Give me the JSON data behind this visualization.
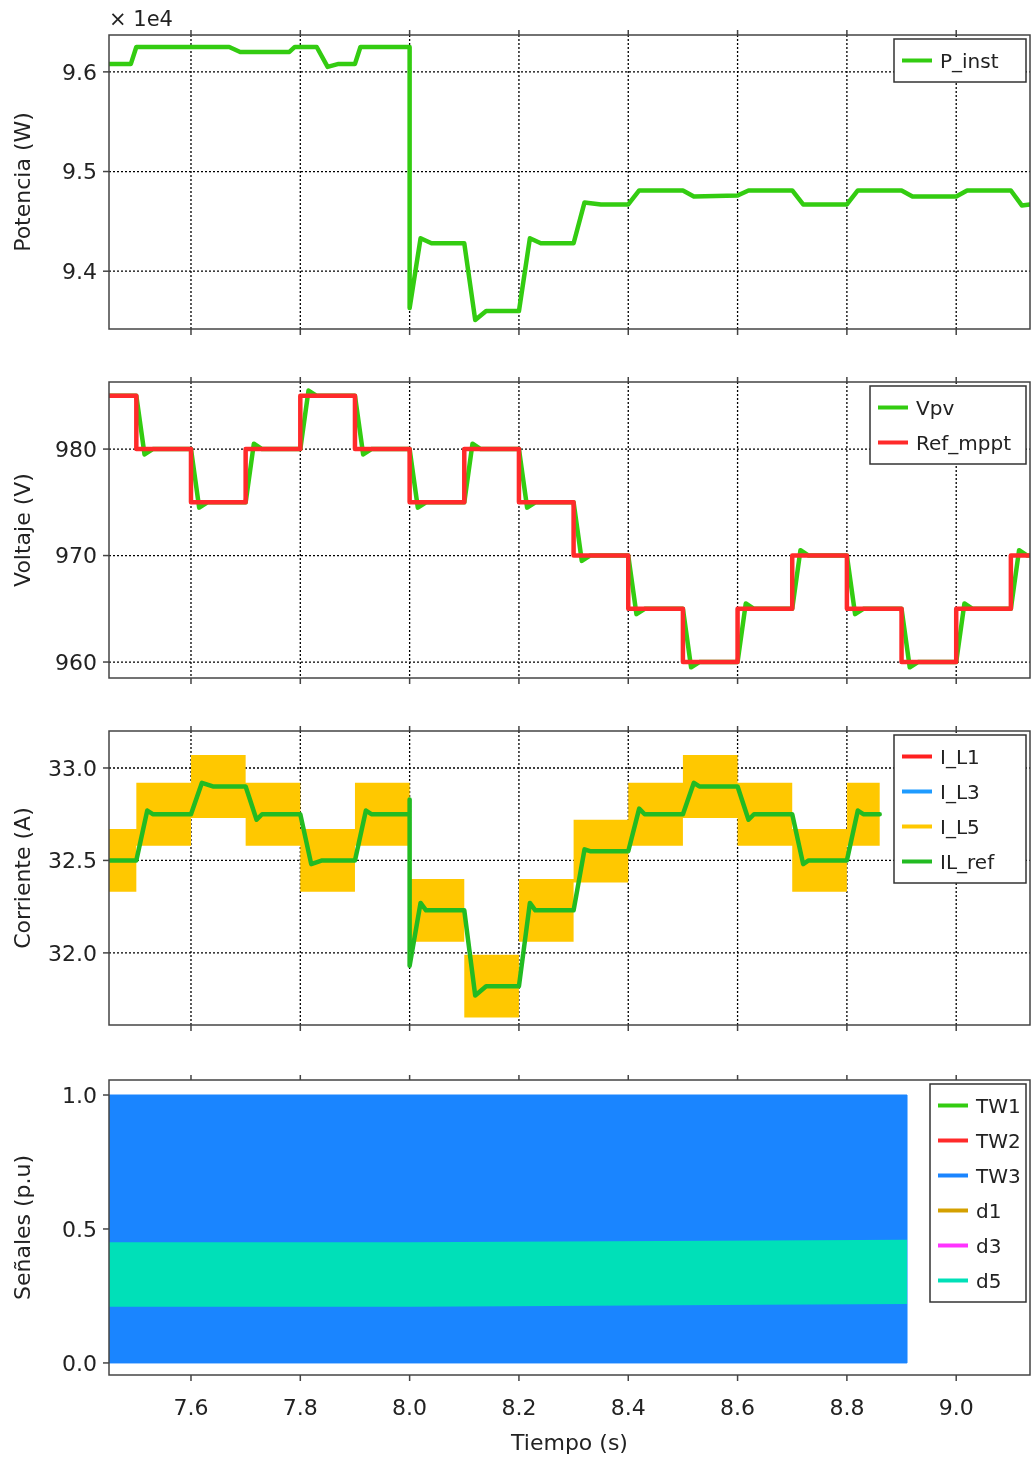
{
  "chart_data": [
    {
      "type": "line",
      "ylabel": "Potencia (W)",
      "annotations": [
        "× 1e4"
      ],
      "xlim": [
        7.45,
        9.135
      ],
      "ylim": [
        9.342,
        9.637
      ],
      "yticks": [
        9.4,
        9.5,
        9.6
      ],
      "xticks": [
        7.6,
        7.8,
        8,
        8.2,
        8.4,
        8.6,
        8.8,
        9
      ],
      "tick_labels": "y",
      "grid": true,
      "legend": "top right",
      "series": [
        {
          "name": "P_inst",
          "color": "#33cc11",
          "x": [
            7.45,
            7.49,
            7.5,
            7.67,
            7.69,
            7.78,
            7.79,
            7.83,
            7.85,
            7.87,
            7.9,
            7.91,
            8.0,
            8.0,
            8.02,
            8.04,
            8.1,
            8.12,
            8.14,
            8.2,
            8.22,
            8.24,
            8.3,
            8.32,
            8.35,
            8.4,
            8.42,
            8.5,
            8.52,
            8.6,
            8.62,
            8.7,
            8.72,
            8.8,
            8.82,
            8.9,
            8.92,
            9.0,
            9.02,
            9.1,
            9.12,
            9.135
          ],
          "values": [
            9.608,
            9.608,
            9.625,
            9.625,
            9.62,
            9.62,
            9.625,
            9.625,
            9.605,
            9.608,
            9.608,
            9.625,
            9.625,
            9.363,
            9.433,
            9.428,
            9.428,
            9.351,
            9.36,
            9.36,
            9.433,
            9.428,
            9.428,
            9.469,
            9.467,
            9.467,
            9.481,
            9.481,
            9.475,
            9.476,
            9.481,
            9.481,
            9.467,
            9.467,
            9.481,
            9.481,
            9.475,
            9.475,
            9.481,
            9.481,
            9.466,
            9.467
          ]
        }
      ]
    },
    {
      "type": "line",
      "ylabel": "Voltaje (V)",
      "xlim": [
        7.45,
        9.135
      ],
      "ylim": [
        958.5,
        986.3
      ],
      "yticks": [
        960,
        970,
        980
      ],
      "xticks": [
        7.6,
        7.8,
        8,
        8.2,
        8.4,
        8.6,
        8.8,
        9
      ],
      "tick_labels": "y",
      "grid": true,
      "legend": "top right",
      "series": [
        {
          "name": "Vpv",
          "color": "#33cc11",
          "x": [
            7.45,
            7.5,
            7.515,
            7.53,
            7.6,
            7.615,
            7.63,
            7.7,
            7.715,
            7.73,
            7.8,
            7.815,
            7.83,
            7.9,
            7.915,
            7.93,
            8.0,
            8.015,
            8.03,
            8.1,
            8.115,
            8.13,
            8.2,
            8.215,
            8.23,
            8.3,
            8.315,
            8.33,
            8.4,
            8.415,
            8.43,
            8.5,
            8.515,
            8.53,
            8.6,
            8.615,
            8.63,
            8.7,
            8.715,
            8.73,
            8.8,
            8.815,
            8.83,
            8.9,
            8.915,
            8.93,
            9.0,
            9.015,
            9.03,
            9.1,
            9.115,
            9.13,
            9.135
          ],
          "values": [
            985,
            985,
            979.5,
            980,
            980,
            974.5,
            975,
            975,
            980.5,
            980,
            980,
            985.5,
            985,
            985,
            979.5,
            980,
            980,
            974.5,
            975,
            975,
            980.5,
            980,
            980,
            974.5,
            975,
            975,
            969.5,
            970,
            970,
            964.5,
            965,
            965,
            959.5,
            960,
            960,
            965.5,
            965,
            965,
            970.5,
            970,
            970,
            964.5,
            965,
            965,
            959.5,
            960,
            960,
            965.5,
            965,
            965,
            970.5,
            970,
            970
          ]
        },
        {
          "name": "Ref_mppt",
          "color": "#ff2a2a",
          "type": "step",
          "x": [
            7.45,
            7.5,
            7.6,
            7.7,
            7.8,
            7.9,
            8.0,
            8.1,
            8.2,
            8.3,
            8.4,
            8.5,
            8.6,
            8.7,
            8.8,
            8.9,
            9.0,
            9.1,
            9.135
          ],
          "values": [
            985,
            980,
            975,
            980,
            985,
            980,
            975,
            980,
            975,
            970,
            965,
            960,
            965,
            970,
            965,
            960,
            965,
            970,
            970
          ]
        }
      ]
    },
    {
      "type": "line",
      "ylabel": "Corriente (A)",
      "xlim": [
        7.45,
        9.135
      ],
      "ylim": [
        31.61,
        33.2
      ],
      "yticks": [
        {
          "value": 32,
          "label": "32.0"
        },
        32.5,
        {
          "value": 33,
          "label": "33.0"
        }
      ],
      "xticks": [
        7.6,
        7.8,
        8,
        8.2,
        8.4,
        8.6,
        8.8,
        9
      ],
      "tick_labels": "y",
      "grid": true,
      "legend": "top right",
      "series": [
        {
          "name": "I_L1",
          "color": "#ff2020"
        },
        {
          "name": "I_L3",
          "color": "#1e9bff"
        },
        {
          "name": "I_L5",
          "color": "#ffc800",
          "x": [
            7.45,
            7.5,
            7.5,
            7.6,
            7.6,
            7.7,
            7.7,
            7.8,
            7.8,
            7.9,
            7.9,
            8.0,
            8.0,
            8.1,
            8.1,
            8.2,
            8.2,
            8.3,
            8.3,
            8.4,
            8.4,
            8.5,
            8.5,
            8.6,
            8.6,
            8.7,
            8.7,
            8.8,
            8.8,
            8.86
          ],
          "values": [
            null,
            null,
            null,
            null,
            null,
            null,
            null,
            null,
            null,
            null,
            null,
            null,
            null,
            null,
            null,
            null,
            null,
            null,
            null,
            null,
            null,
            null,
            null,
            null,
            null,
            null,
            null,
            null,
            null,
            null
          ],
          "upper": [
            32.67,
            32.67,
            32.92,
            32.92,
            33.07,
            33.07,
            32.92,
            32.92,
            32.67,
            32.67,
            32.92,
            32.92,
            32.4,
            32.4,
            31.99,
            31.99,
            32.4,
            32.4,
            32.72,
            32.72,
            32.92,
            32.92,
            33.07,
            33.07,
            32.92,
            32.92,
            32.67,
            32.67,
            32.92,
            32.92
          ],
          "lower": [
            32.33,
            32.33,
            32.58,
            32.58,
            32.73,
            32.73,
            32.58,
            32.58,
            32.33,
            32.33,
            32.58,
            32.58,
            32.06,
            32.06,
            31.65,
            31.65,
            32.06,
            32.06,
            32.38,
            32.38,
            32.58,
            32.58,
            32.73,
            32.73,
            32.58,
            32.58,
            32.33,
            32.33,
            32.58,
            32.58
          ]
        },
        {
          "name": "IL_ref",
          "color": "#22bb22",
          "x": [
            7.45,
            7.5,
            7.52,
            7.53,
            7.6,
            7.62,
            7.64,
            7.7,
            7.72,
            7.73,
            7.8,
            7.82,
            7.84,
            7.9,
            7.92,
            7.93,
            8.0,
            8.0,
            8.0,
            8.02,
            8.03,
            8.1,
            8.12,
            8.14,
            8.2,
            8.22,
            8.23,
            8.3,
            8.32,
            8.33,
            8.4,
            8.42,
            8.43,
            8.5,
            8.52,
            8.53,
            8.6,
            8.62,
            8.63,
            8.7,
            8.72,
            8.73,
            8.8,
            8.82,
            8.83,
            8.86
          ],
          "values": [
            32.5,
            32.5,
            32.77,
            32.75,
            32.75,
            32.92,
            32.9,
            32.9,
            32.72,
            32.75,
            32.75,
            32.48,
            32.5,
            32.5,
            32.77,
            32.75,
            32.75,
            32.83,
            31.93,
            32.27,
            32.23,
            32.23,
            31.77,
            31.82,
            31.82,
            32.27,
            32.23,
            32.23,
            32.56,
            32.55,
            32.55,
            32.78,
            32.75,
            32.75,
            32.92,
            32.9,
            32.9,
            32.72,
            32.75,
            32.75,
            32.48,
            32.5,
            32.5,
            32.77,
            32.75,
            32.75
          ]
        }
      ]
    },
    {
      "type": "line",
      "ylabel": "Señales (p.u)",
      "xlabel": "Tiempo (s)",
      "xlim": [
        7.45,
        9.135
      ],
      "ylim": [
        -0.045,
        1.056
      ],
      "yticks": [
        {
          "value": 0,
          "label": "0.0"
        },
        0.5,
        {
          "value": 1,
          "label": "1.0"
        }
      ],
      "xticks": [
        7.6,
        7.8,
        {
          "value": 8,
          "label": "8.0"
        },
        8.2,
        8.4,
        8.6,
        8.8,
        {
          "value": 9,
          "label": "9.0"
        }
      ],
      "legend": "top right",
      "series": [
        {
          "name": "TW1",
          "color": "#33cc11"
        },
        {
          "name": "TW2",
          "color": "#ff2a2a"
        },
        {
          "name": "TW3",
          "color": "#1a85ff",
          "type": "area",
          "x": [
            7.45,
            8.91
          ],
          "values": [
            1,
            1
          ]
        },
        {
          "name": "d1",
          "color": "#d4a000"
        },
        {
          "name": "d3",
          "color": "#ff33ff"
        },
        {
          "name": "d5",
          "color": "#00e0b8",
          "x": [
            7.45,
            8.0,
            8.91
          ],
          "values": [
            null,
            null,
            null
          ],
          "lower": [
            0.21,
            0.21,
            0.22
          ],
          "upper": [
            0.45,
            0.45,
            0.46
          ]
        }
      ]
    }
  ]
}
